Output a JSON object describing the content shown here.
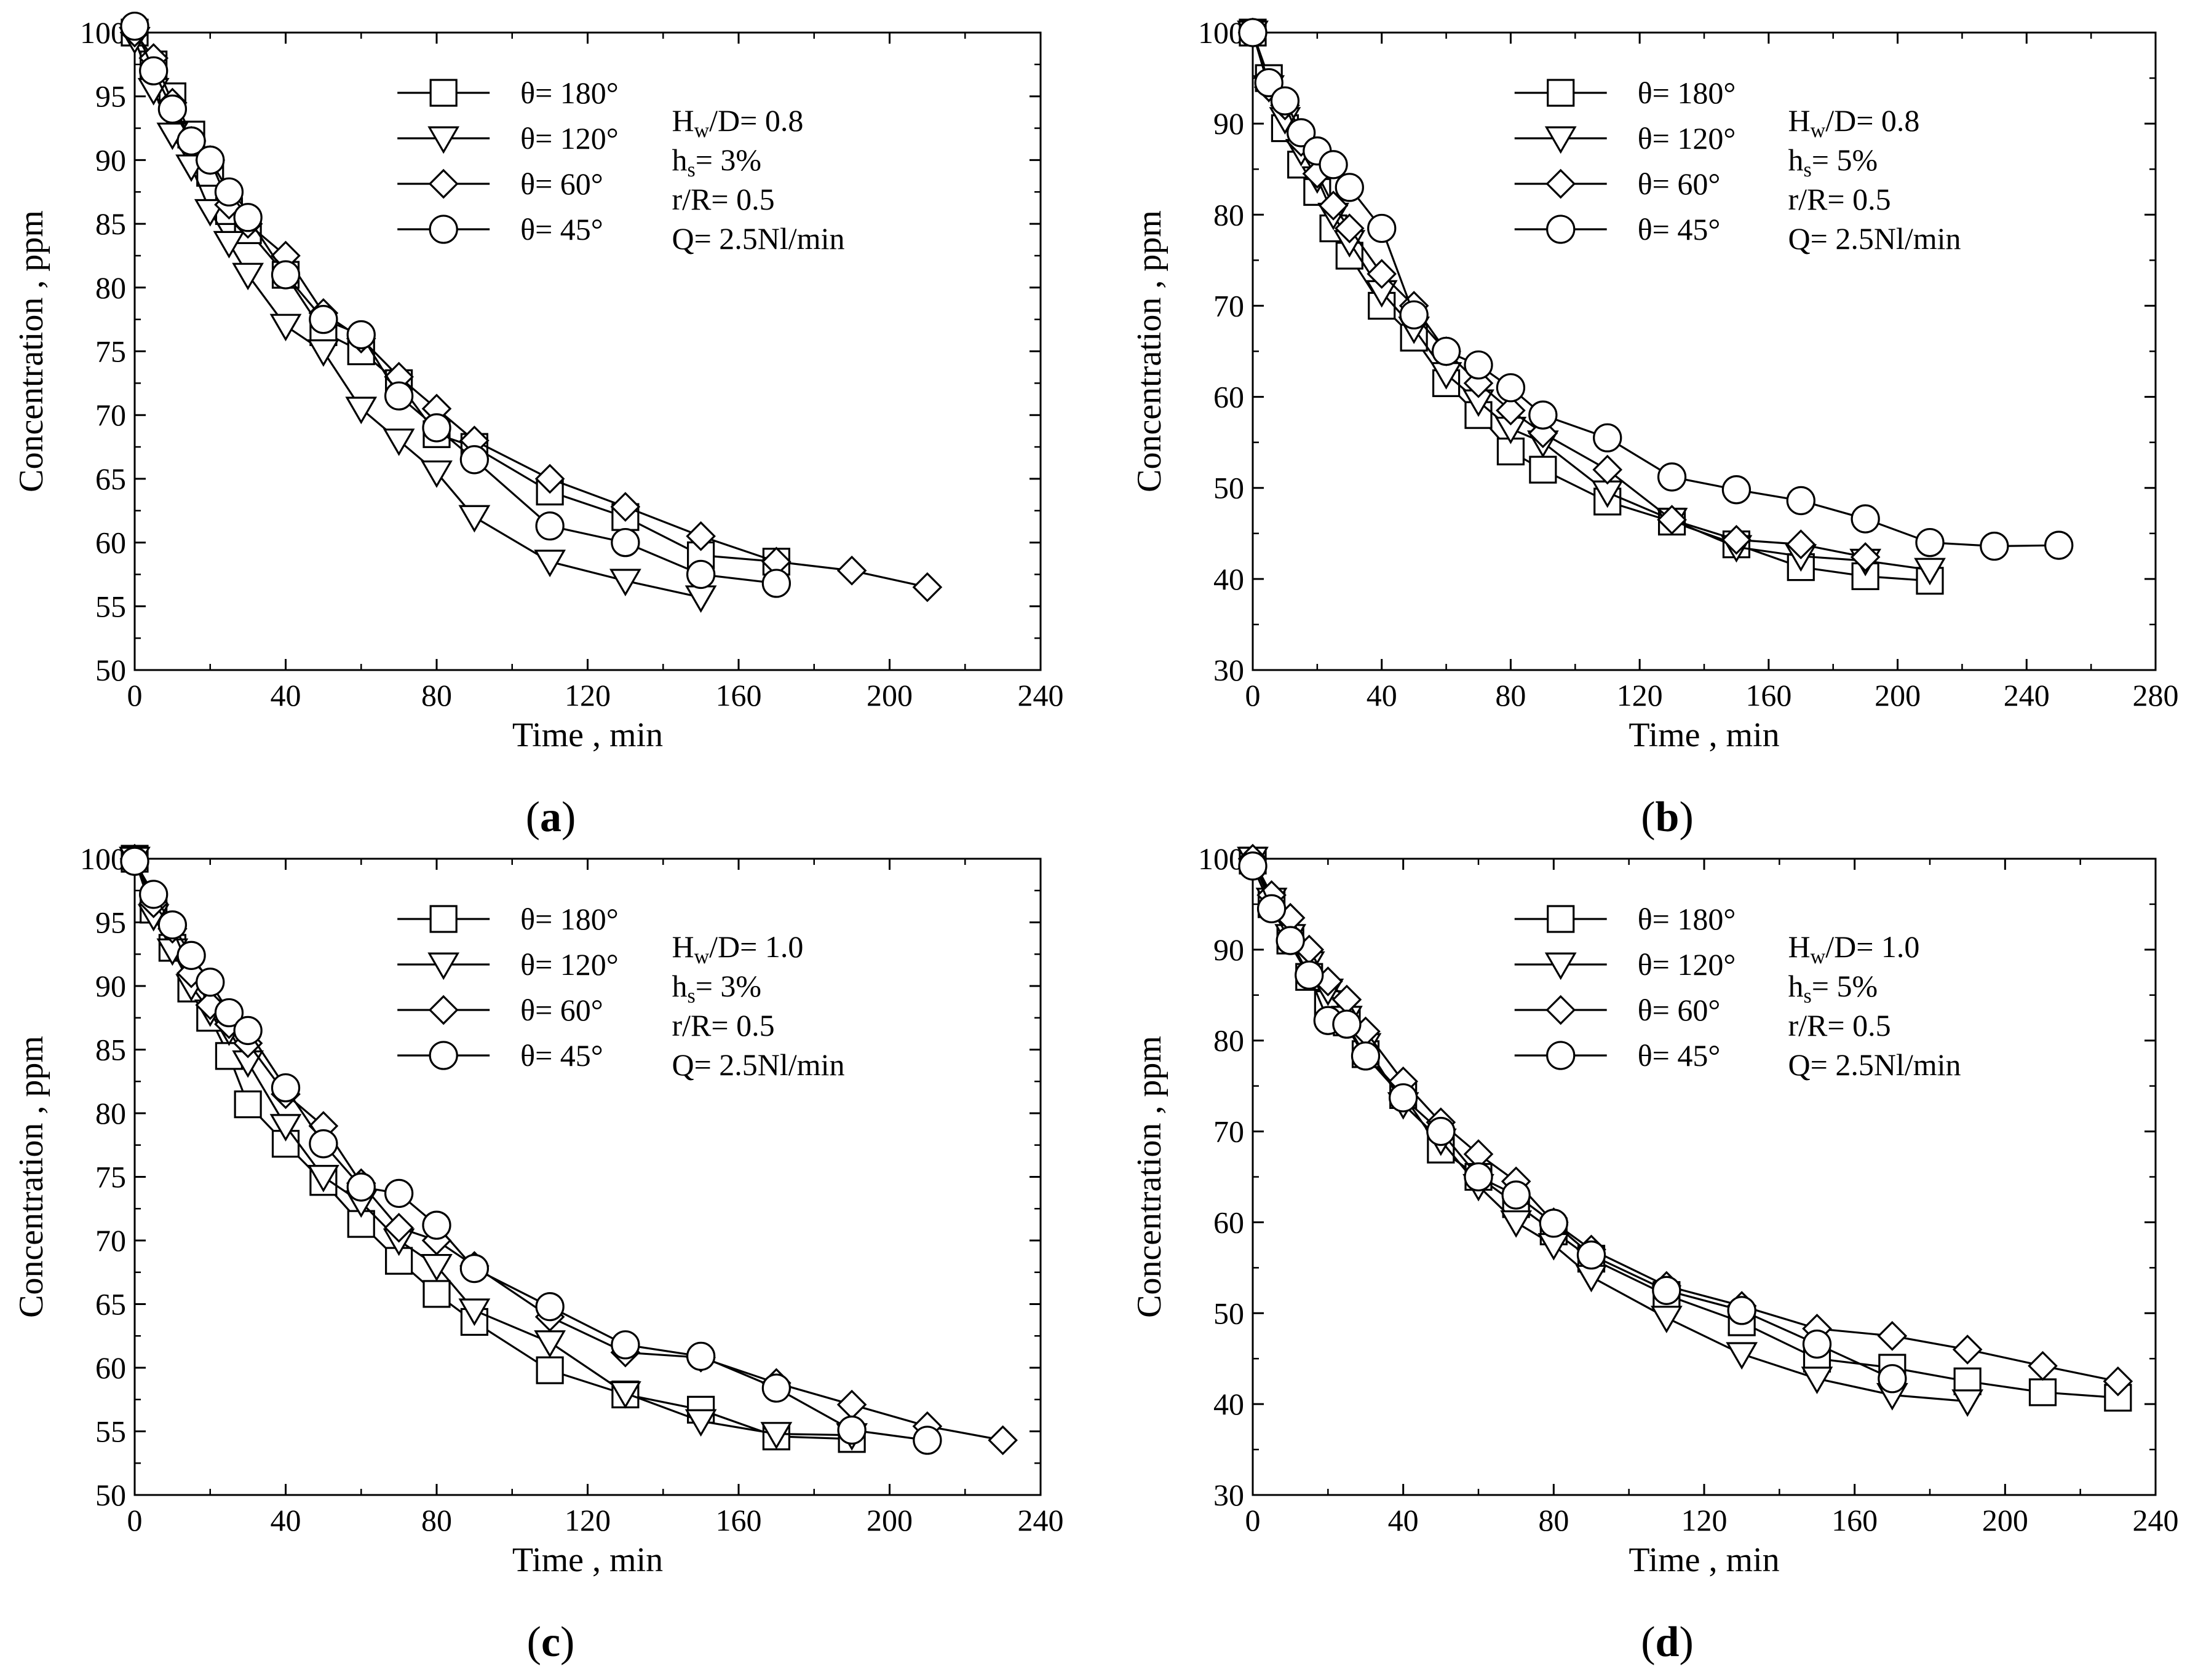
{
  "chart_data": [
    {
      "panel": "a",
      "type": "line",
      "xlabel": "Time , min",
      "ylabel": "Concentration , ppm",
      "xlim": [
        0,
        240
      ],
      "ylim": [
        50,
        100
      ],
      "xticks": [
        "0",
        "40",
        "80",
        "120",
        "160",
        "200",
        "240"
      ],
      "yticks": [
        "50",
        "55",
        "60",
        "65",
        "70",
        "75",
        "80",
        "85",
        "90",
        "95",
        "100"
      ],
      "panel_label": [
        "(",
        "a",
        ")"
      ],
      "legend_location": "top-center",
      "annotation": {
        "line1_main": "H",
        "line1_sub": "w",
        "line1_rest": "/D= 0.8",
        "line2_main": "h",
        "line2_sub": "s",
        "line2_rest": "= 3%",
        "line3": "r/R= 0.5",
        "line4": "Q= 2.5Nl/min"
      },
      "series": [
        {
          "name": "θ= 180°",
          "marker": "square",
          "x": [
            0,
            5,
            10,
            15,
            20,
            25,
            30,
            40,
            50,
            60,
            70,
            80,
            90,
            110,
            130,
            150,
            170
          ],
          "y": [
            100,
            97.5,
            95,
            92,
            89,
            86,
            84.5,
            81,
            76.5,
            75,
            72.5,
            68.5,
            67.5,
            64,
            62,
            59,
            58.5
          ]
        },
        {
          "name": "θ= 120°",
          "marker": "triangle-down",
          "x": [
            0,
            5,
            10,
            15,
            20,
            25,
            30,
            40,
            50,
            60,
            70,
            80,
            90,
            110,
            130,
            150
          ],
          "y": [
            99.5,
            95.5,
            92,
            89.5,
            86,
            83.5,
            81,
            77,
            75,
            70.5,
            68,
            65.5,
            62,
            58.5,
            57,
            55.7
          ]
        },
        {
          "name": "θ= 60°",
          "marker": "diamond",
          "x": [
            0,
            5,
            10,
            15,
            20,
            25,
            30,
            40,
            50,
            60,
            70,
            80,
            90,
            110,
            130,
            150,
            170,
            190,
            210
          ],
          "y": [
            100,
            98,
            94.5,
            91.5,
            90,
            86.5,
            85,
            82.5,
            78,
            76,
            73,
            70.5,
            68,
            65,
            62.8,
            60.5,
            58.5,
            57.8,
            56.5
          ]
        },
        {
          "name": "θ= 45°",
          "marker": "circle",
          "x": [
            0,
            5,
            10,
            15,
            20,
            25,
            30,
            40,
            50,
            60,
            70,
            80,
            90,
            110,
            130,
            150,
            170
          ],
          "y": [
            100.5,
            97,
            94,
            91.5,
            90,
            87.5,
            85.5,
            81,
            77.5,
            76.3,
            71.5,
            69,
            66.5,
            61.3,
            60,
            57.5,
            56.8
          ]
        }
      ]
    },
    {
      "panel": "b",
      "type": "line",
      "xlabel": "Time , min",
      "ylabel": "Concentration , ppm",
      "xlim": [
        0,
        280
      ],
      "ylim": [
        30,
        100
      ],
      "xticks": [
        "0",
        "40",
        "80",
        "120",
        "160",
        "200",
        "240",
        "280"
      ],
      "yticks": [
        "30",
        "40",
        "50",
        "60",
        "70",
        "80",
        "90",
        "100"
      ],
      "panel_label": [
        "(",
        "b",
        ")"
      ],
      "legend_location": "top-center",
      "annotation": {
        "line1_main": "H",
        "line1_sub": "w",
        "line1_rest": "/D= 0.8",
        "line2_main": "h",
        "line2_sub": "s",
        "line2_rest": "= 5%",
        "line3": "r/R= 0.5",
        "line4": "Q= 2.5Nl/min"
      },
      "series": [
        {
          "name": "θ= 180°",
          "marker": "square",
          "x": [
            0,
            5,
            10,
            15,
            20,
            25,
            30,
            40,
            50,
            60,
            70,
            80,
            90,
            110,
            130,
            150,
            170,
            190,
            210
          ],
          "y": [
            100,
            95,
            89.5,
            85.5,
            82.5,
            78.5,
            75.5,
            70,
            66.5,
            61.5,
            58,
            54,
            52,
            48.5,
            46.3,
            43.8,
            41.3,
            40.3,
            39.8
          ]
        },
        {
          "name": "θ= 120°",
          "marker": "triangle-down",
          "x": [
            0,
            5,
            10,
            15,
            20,
            25,
            30,
            40,
            50,
            60,
            70,
            80,
            90,
            110,
            130,
            150,
            170,
            190,
            210
          ],
          "y": [
            100,
            94,
            90.5,
            87,
            84,
            80,
            77,
            71.5,
            67.5,
            62.5,
            59.5,
            56.5,
            55,
            49.5,
            46.5,
            43.5,
            42.5,
            42,
            41
          ]
        },
        {
          "name": "θ= 60°",
          "marker": "diamond",
          "x": [
            0,
            5,
            10,
            15,
            20,
            25,
            30,
            40,
            50,
            60,
            70,
            80,
            90,
            110,
            130,
            150,
            170,
            190
          ],
          "y": [
            100,
            94,
            92,
            88,
            84.5,
            81,
            78.5,
            73.5,
            70,
            65,
            61.5,
            58.5,
            56,
            52,
            46.5,
            44.3,
            43.8,
            42.4
          ]
        },
        {
          "name": "θ= 45°",
          "marker": "circle",
          "x": [
            0,
            5,
            10,
            15,
            20,
            25,
            30,
            40,
            50,
            60,
            70,
            80,
            90,
            110,
            130,
            150,
            170,
            190,
            210,
            230,
            250
          ],
          "y": [
            100,
            94.5,
            92.5,
            89,
            87,
            85.5,
            83,
            78.5,
            69,
            65,
            63.5,
            61,
            58,
            55.5,
            51.2,
            49.8,
            48.6,
            46.6,
            44,
            43.6,
            43.7
          ]
        }
      ]
    },
    {
      "panel": "c",
      "type": "line",
      "xlabel": "Time , min",
      "ylabel": "Concentration , ppm",
      "xlim": [
        0,
        240
      ],
      "ylim": [
        50,
        100
      ],
      "xticks": [
        "0",
        "40",
        "80",
        "120",
        "160",
        "200",
        "240"
      ],
      "yticks": [
        "50",
        "55",
        "60",
        "65",
        "70",
        "75",
        "80",
        "85",
        "90",
        "95",
        "100"
      ],
      "panel_label": [
        "(",
        "c",
        ")"
      ],
      "legend_location": "top-center",
      "annotation": {
        "line1_main": "H",
        "line1_sub": "w",
        "line1_rest": "/D= 1.0",
        "line2_main": "h",
        "line2_sub": "s",
        "line2_rest": "= 3%",
        "line3": "r/R= 0.5",
        "line4": "Q= 2.5Nl/min"
      },
      "series": [
        {
          "name": "θ= 180°",
          "marker": "square",
          "x": [
            0,
            5,
            10,
            15,
            20,
            25,
            30,
            40,
            50,
            60,
            70,
            80,
            90,
            110,
            130,
            150,
            170,
            190
          ],
          "y": [
            100,
            96,
            93,
            89.8,
            87.5,
            84.5,
            80.7,
            77.6,
            74.6,
            71.3,
            68.4,
            65.8,
            63.6,
            59.8,
            57.9,
            56.7,
            54.6,
            54.4
          ]
        },
        {
          "name": "θ= 120°",
          "marker": "triangle-down",
          "x": [
            0,
            5,
            10,
            15,
            20,
            25,
            30,
            40,
            50,
            60,
            70,
            80,
            90,
            110,
            130,
            150,
            170,
            190
          ],
          "y": [
            100,
            95.5,
            92.8,
            90,
            88,
            86.5,
            84,
            79,
            75,
            73,
            70,
            68,
            64.5,
            62,
            58,
            55.8,
            54.8,
            54.7
          ]
        },
        {
          "name": "θ= 60°",
          "marker": "diamond",
          "x": [
            0,
            5,
            10,
            15,
            20,
            25,
            30,
            40,
            50,
            60,
            70,
            80,
            90,
            110,
            130,
            150,
            170,
            190,
            210,
            230
          ],
          "y": [
            100,
            96.5,
            94.5,
            91,
            88.5,
            87,
            85.5,
            81.5,
            79,
            74.5,
            71,
            70,
            68,
            64,
            61.2,
            60.8,
            58.8,
            57.1,
            55.4,
            54.3
          ]
        },
        {
          "name": "θ= 45°",
          "marker": "circle",
          "x": [
            0,
            5,
            10,
            15,
            20,
            25,
            30,
            40,
            50,
            60,
            70,
            80,
            90,
            110,
            130,
            150,
            170,
            190,
            210
          ],
          "y": [
            99.8,
            97.2,
            94.8,
            92.4,
            90.3,
            87.9,
            86.5,
            82,
            77.6,
            74.2,
            73.7,
            71.2,
            67.8,
            64.8,
            61.8,
            60.9,
            58.4,
            55.1,
            54.3
          ]
        }
      ]
    },
    {
      "panel": "d",
      "type": "line",
      "xlabel": "Time , min",
      "ylabel": "Concentration , ppm",
      "xlim": [
        0,
        240
      ],
      "ylim": [
        30,
        100
      ],
      "xticks": [
        "0",
        "40",
        "80",
        "120",
        "160",
        "200",
        "240"
      ],
      "yticks": [
        "30",
        "40",
        "50",
        "60",
        "70",
        "80",
        "90",
        "100"
      ],
      "panel_label": [
        "(",
        "d",
        ")"
      ],
      "legend_location": "top-center",
      "annotation": {
        "line1_main": "H",
        "line1_sub": "w",
        "line1_rest": "/D= 1.0",
        "line2_main": "h",
        "line2_sub": "s",
        "line2_rest": "= 5%",
        "line3": "r/R= 0.5",
        "line4": "Q= 2.5Nl/min"
      },
      "series": [
        {
          "name": "θ= 180°",
          "marker": "square",
          "x": [
            0,
            5,
            10,
            15,
            20,
            25,
            30,
            40,
            50,
            60,
            70,
            80,
            90,
            110,
            130,
            150,
            170,
            190,
            210,
            230
          ],
          "y": [
            99.8,
            95,
            91,
            87,
            84,
            82,
            78.5,
            74,
            68,
            65,
            62,
            59,
            56,
            52,
            49,
            45,
            44,
            42.5,
            41.3,
            40.7
          ]
        },
        {
          "name": "θ= 120°",
          "marker": "triangle-down",
          "x": [
            0,
            5,
            10,
            15,
            20,
            25,
            30,
            40,
            50,
            60,
            70,
            80,
            90,
            110,
            130,
            150,
            170,
            190
          ],
          "y": [
            100,
            95.5,
            91.5,
            88.5,
            85.5,
            82.5,
            79.5,
            73,
            69,
            64,
            60,
            57.5,
            54,
            49.5,
            45.5,
            42.8,
            41,
            40.3
          ]
        },
        {
          "name": "θ= 60°",
          "marker": "diamond",
          "x": [
            0,
            5,
            10,
            15,
            20,
            25,
            30,
            40,
            50,
            60,
            70,
            80,
            90,
            110,
            130,
            150,
            170,
            190,
            210,
            230
          ],
          "y": [
            100,
            96,
            93.5,
            90,
            86.5,
            84.5,
            81,
            75.5,
            71,
            67.5,
            64.5,
            60,
            57,
            53,
            50.8,
            48.3,
            47.5,
            46,
            44.2,
            42.5
          ]
        },
        {
          "name": "θ= 45°",
          "marker": "circle",
          "x": [
            0,
            5,
            10,
            15,
            20,
            25,
            30,
            40,
            50,
            60,
            70,
            80,
            90,
            110,
            130,
            150,
            170
          ],
          "y": [
            99.2,
            94.5,
            91,
            87.2,
            82.2,
            81.8,
            78.3,
            73.7,
            70,
            65,
            63,
            59.9,
            56.4,
            52.5,
            50.3,
            46.6,
            42.8
          ]
        }
      ]
    }
  ]
}
